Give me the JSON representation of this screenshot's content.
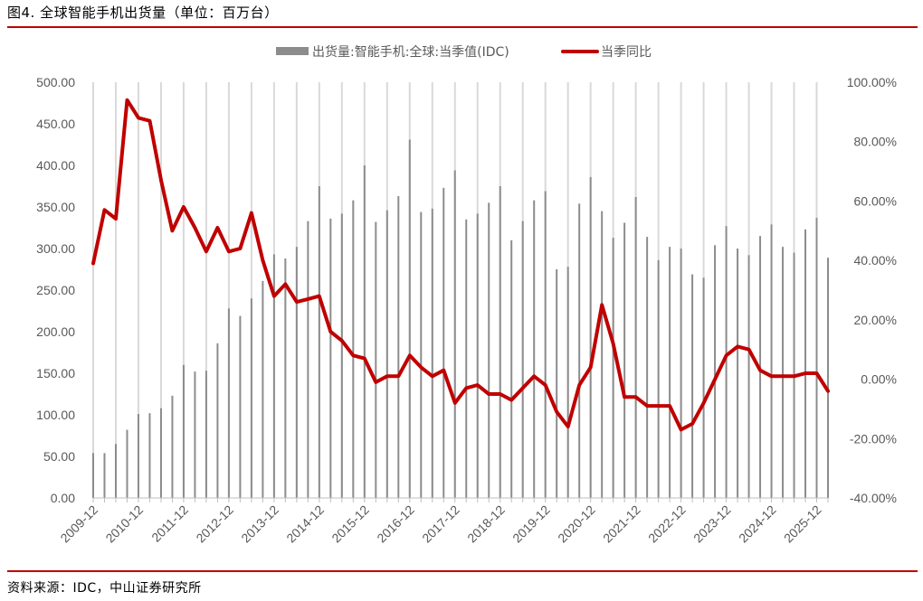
{
  "figure": {
    "title": "图4.  全球智能手机出货量（单位：百万台）",
    "source": "资料来源：IDC，中山证券研究所"
  },
  "colors": {
    "accent": "#c00000",
    "bar": "#8c8c8c",
    "line": "#c00000",
    "grid": "#d9d9d9",
    "text": "#595959"
  },
  "chart_data": {
    "type": "bar+line",
    "title": "",
    "grid": true,
    "legend_position": "top-center",
    "legend": [
      "出货量:智能手机:全球:当季值(IDC)",
      "当季同比"
    ],
    "y_left": {
      "min": 0,
      "max": 500,
      "ticks": [
        "0.00",
        "50.00",
        "100.00",
        "150.00",
        "200.00",
        "250.00",
        "300.00",
        "350.00",
        "400.00",
        "450.00",
        "500.00"
      ]
    },
    "y_right": {
      "min": -40,
      "max": 100,
      "ticks": [
        "-40.00%",
        "-20.00%",
        "0.00%",
        "20.00%",
        "40.00%",
        "60.00%",
        "80.00%",
        "100.00%"
      ]
    },
    "x_tick_labels": [
      "2009-12",
      "2010-12",
      "2011-12",
      "2012-12",
      "2013-12",
      "2014-12",
      "2015-12",
      "2016-12",
      "2017-12",
      "2018-12",
      "2019-12",
      "2020-12",
      "2021-12",
      "2022-12",
      "2023-12",
      "2024-12",
      "2025-12"
    ],
    "quarters": [
      "2009-12",
      "2010-03",
      "2010-06",
      "2010-09",
      "2010-12",
      "2011-03",
      "2011-06",
      "2011-09",
      "2011-12",
      "2012-03",
      "2012-06",
      "2012-09",
      "2012-12",
      "2013-03",
      "2013-06",
      "2013-09",
      "2013-12",
      "2014-03",
      "2014-06",
      "2014-09",
      "2014-12",
      "2015-03",
      "2015-06",
      "2015-09",
      "2015-12",
      "2016-03",
      "2016-06",
      "2016-09",
      "2016-12",
      "2017-03",
      "2017-06",
      "2017-09",
      "2017-12",
      "2018-03",
      "2018-06",
      "2018-09",
      "2018-12",
      "2019-03",
      "2019-06",
      "2019-09",
      "2019-12",
      "2020-03",
      "2020-06",
      "2020-09",
      "2020-12",
      "2021-03",
      "2021-06",
      "2021-09",
      "2021-12",
      "2022-03",
      "2022-06",
      "2022-09",
      "2022-12",
      "2023-03",
      "2023-06",
      "2023-09",
      "2023-12",
      "2024-03",
      "2024-06",
      "2024-09",
      "2024-12",
      "2025-03",
      "2025-06",
      "2025-09",
      "2025-12",
      "2026-03"
    ],
    "series": [
      {
        "name": "出货量:智能手机:全球:当季值(IDC)",
        "type": "bar",
        "values": [
          54,
          54,
          65,
          82,
          101,
          102,
          108,
          123,
          160,
          152,
          153,
          186,
          228,
          219,
          240,
          261,
          293,
          288,
          302,
          333,
          375,
          336,
          342,
          358,
          400,
          332,
          346,
          363,
          431,
          344,
          348,
          373,
          394,
          335,
          342,
          355,
          375,
          310,
          333,
          358,
          369,
          275,
          278,
          354,
          386,
          345,
          313,
          331,
          362,
          314,
          286,
          302,
          300,
          269,
          265,
          304,
          327,
          300,
          292,
          315,
          329,
          302,
          295,
          323,
          337,
          289
        ]
      },
      {
        "name": "当季同比",
        "type": "line",
        "values": [
          39,
          57,
          54,
          94,
          88,
          87,
          67,
          50,
          58,
          51,
          43,
          51,
          43,
          44,
          56,
          40,
          28,
          32,
          26,
          27,
          28,
          16,
          13,
          8,
          7,
          -1,
          1,
          1,
          8,
          4,
          1,
          3,
          -8,
          -3,
          -2,
          -5,
          -5,
          -7,
          -3,
          1,
          -2,
          -11,
          -16,
          -2,
          4,
          25,
          12,
          -6,
          -6,
          -9,
          -9,
          -9,
          -17,
          -15,
          -8,
          0,
          8,
          11,
          10,
          3,
          1,
          1,
          1,
          2,
          2,
          -4
        ]
      }
    ]
  }
}
